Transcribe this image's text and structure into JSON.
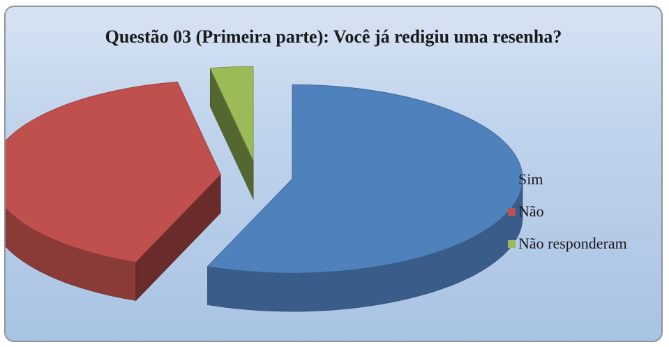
{
  "chart_data": {
    "type": "pie",
    "style": "3d-exploded",
    "title": "Questão 03 (Primeira parte): Você já redigiu uma resenha?",
    "categories": [
      "Sim",
      "Não",
      "Não responderam"
    ],
    "values": [
      56,
      41,
      3
    ],
    "value_unit": "percent",
    "colors": [
      "#4f81bd",
      "#c0504d",
      "#9bbb59"
    ],
    "legend_position": "right"
  }
}
